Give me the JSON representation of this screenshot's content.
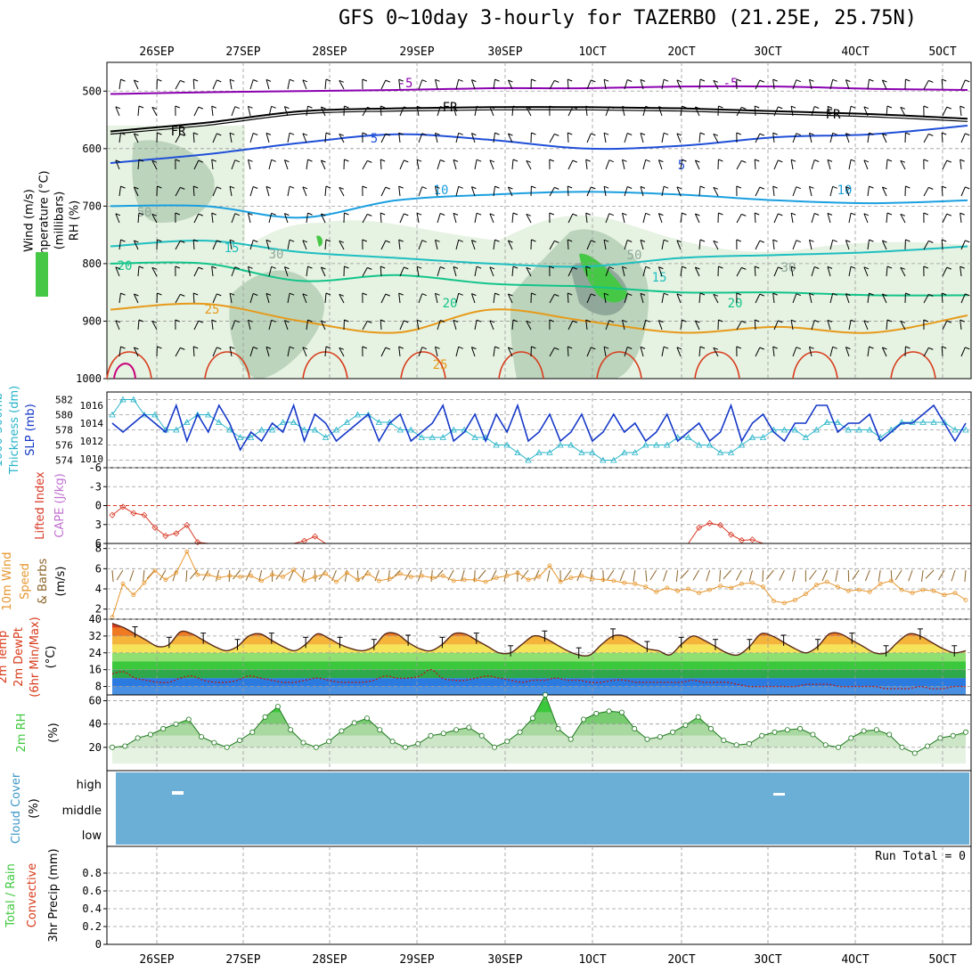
{
  "title": "GFS 0~10day 3-hourly for TAZERBO (21.25E, 25.75N)",
  "colors": {
    "purple": "#8b00b0",
    "black": "#000000",
    "blue": "#1f4fd8",
    "sky": "#1a9fe0",
    "cyan": "#1ebfc0",
    "teal": "#12c48a",
    "orange": "#e69a1a",
    "red": "#d83a1a",
    "magenta": "#c8007a",
    "rh_light": "#e6f2e2",
    "rh_mid": "#bcd4bc",
    "rh_dark": "#8fa89a",
    "rh_green": "#46c846",
    "slp": "#1437c8",
    "thick": "#28b4c8",
    "li": "#d83a28",
    "wind10": "#e6962d",
    "barb": "#8c6428",
    "rh2m": "#3cc83c",
    "cloud": "#6baed6",
    "grid": "#9a9a9a"
  },
  "time_labels": [
    "26SEP",
    "27SEP",
    "28SEP",
    "29SEP",
    "30SEP",
    "1OCT",
    "2OCT",
    "3OCT",
    "4OCT",
    "5OCT"
  ],
  "panels": [
    {
      "key": "upper",
      "left_labels": [
        {
          "text": "Wind (m/s)",
          "color": "#000000"
        },
        {
          "text": "Temperature (°C)",
          "color": "#000000"
        },
        {
          "text": "(millibars)",
          "color": "#000000"
        },
        {
          "text": "RH (%)",
          "color": "#000000"
        }
      ]
    },
    {
      "key": "thick",
      "left_labels": [
        {
          "text": "1000-500mb",
          "color": "#28b4c8"
        },
        {
          "text": "Thickness (dm)",
          "color": "#28b4c8"
        },
        {
          "text": "SLP (mb)",
          "color": "#1437c8"
        }
      ]
    },
    {
      "key": "li",
      "left_labels": [
        {
          "text": "Lifted Index",
          "color": "#d83a28"
        },
        {
          "text": "CAPE (J/kg)",
          "color": "#c070d0"
        }
      ]
    },
    {
      "key": "wind",
      "left_labels": [
        {
          "text": "10m Wind",
          "color": "#e6962d"
        },
        {
          "text": "Speed",
          "color": "#e6962d"
        },
        {
          "text": "& Barbs",
          "color": "#8c6428"
        },
        {
          "text": "(m/s)",
          "color": "#000000"
        }
      ]
    },
    {
      "key": "temp",
      "left_labels": [
        {
          "text": "2m Temp",
          "color": "#d83a1a"
        },
        {
          "text": "2m DewPt",
          "color": "#d83a1a"
        },
        {
          "text": "(6hr Min/Max)",
          "color": "#d83a1a"
        },
        {
          "text": "(°C)",
          "color": "#000000"
        }
      ]
    },
    {
      "key": "rh",
      "left_labels": [
        {
          "text": "2m RH",
          "color": "#3cc83c"
        },
        {
          "text": "(%)",
          "color": "#000000"
        }
      ]
    },
    {
      "key": "cloud",
      "left_labels": [
        {
          "text": "Cloud Cover",
          "color": "#3c96c8"
        },
        {
          "text": "(%)",
          "color": "#000000"
        }
      ]
    },
    {
      "key": "precip",
      "left_labels": [
        {
          "text": "Total / Rain",
          "color": "#3cc83c"
        },
        {
          "text": "Convective",
          "color": "#d83a1a"
        },
        {
          "text": "3hr Precip (mm)",
          "color": "#000000"
        }
      ]
    }
  ],
  "run_total": "Run Total = 0",
  "chart_data": [
    {
      "type": "heatmap",
      "name": "upper-air",
      "y_ticks": [
        "500",
        "600",
        "700",
        "800",
        "900",
        "1000"
      ],
      "ylim": [
        1000,
        450
      ],
      "contour_labels": [
        "-5",
        "-5",
        "FR",
        "FR",
        "FR",
        "5",
        "5",
        "10",
        "10",
        "15",
        "15",
        "20",
        "20",
        "20",
        "25",
        "25",
        "50",
        "50",
        "30",
        "30"
      ],
      "temperature_series": [
        {
          "name": "-5",
          "color": "#8b00b0",
          "values": [
            505,
            502,
            500,
            498,
            495,
            495,
            492,
            492,
            496,
            498
          ]
        },
        {
          "name": "FR",
          "color": "#000000",
          "values": [
            570,
            555,
            535,
            530,
            528,
            528,
            530,
            535,
            540,
            548
          ]
        },
        {
          "name": "5",
          "color": "#1f4fd8",
          "values": [
            625,
            610,
            590,
            575,
            585,
            600,
            595,
            580,
            575,
            560
          ]
        },
        {
          "name": "10",
          "color": "#1a9fe0",
          "values": [
            700,
            700,
            720,
            690,
            680,
            675,
            680,
            690,
            695,
            690
          ]
        },
        {
          "name": "15",
          "color": "#1ebfc0",
          "values": [
            770,
            760,
            780,
            790,
            800,
            805,
            790,
            785,
            780,
            770
          ]
        },
        {
          "name": "20",
          "color": "#12c48a",
          "values": [
            800,
            800,
            830,
            820,
            835,
            840,
            850,
            850,
            855,
            855
          ]
        },
        {
          "name": "25",
          "color": "#e69a1a",
          "values": [
            880,
            870,
            900,
            920,
            880,
            900,
            920,
            910,
            920,
            890
          ]
        }
      ]
    },
    {
      "type": "line",
      "name": "thickness-slp",
      "yleft_ticks": [
        "582",
        "580",
        "578",
        "576",
        "574"
      ],
      "yright_ticks": [
        "1016",
        "1014",
        "1012",
        "1010"
      ],
      "series": [
        {
          "name": "SLP",
          "axis": "right",
          "color": "#1437c8",
          "values": [
            1014,
            1013,
            1014,
            1015,
            1014,
            1013,
            1016,
            1012,
            1015,
            1013,
            1016,
            1014,
            1011,
            1013,
            1012,
            1014,
            1013,
            1016,
            1012,
            1015,
            1014,
            1012,
            1013,
            1014,
            1015,
            1012,
            1014,
            1015,
            1012,
            1013,
            1014,
            1016,
            1012,
            1013,
            1015,
            1012,
            1015,
            1013,
            1016,
            1012,
            1013,
            1015,
            1012,
            1013,
            1015,
            1012,
            1013,
            1015,
            1013,
            1014,
            1012,
            1013,
            1015,
            1012,
            1013,
            1014,
            1012,
            1013,
            1016,
            1012,
            1014,
            1015,
            1013,
            1012,
            1014,
            1014,
            1016,
            1016,
            1013,
            1014,
            1014,
            1015,
            1012,
            1013,
            1014,
            1014,
            1015,
            1016,
            1014,
            1012,
            1014
          ]
        },
        {
          "name": "Thickness",
          "axis": "left",
          "color": "#28b4c8",
          "values": [
            580,
            582,
            582,
            580,
            580,
            578,
            578,
            579,
            580,
            580,
            579,
            578,
            577,
            577,
            578,
            578,
            579,
            579,
            578,
            578,
            577,
            578,
            579,
            580,
            580,
            579,
            579,
            578,
            578,
            577,
            577,
            577,
            578,
            578,
            577,
            577,
            576,
            576,
            575,
            574,
            575,
            575,
            576,
            576,
            575,
            575,
            574,
            574,
            575,
            575,
            576,
            576,
            576,
            577,
            577,
            576,
            576,
            575,
            575,
            576,
            577,
            577,
            578,
            578,
            578,
            577,
            578,
            579,
            579,
            578,
            578,
            578,
            577,
            578,
            579,
            579,
            579,
            579,
            579,
            578,
            578
          ]
        }
      ]
    },
    {
      "type": "line",
      "name": "lifted-index",
      "y_ticks": [
        "-6",
        "-3",
        "0",
        "3",
        "6"
      ],
      "ylim": [
        -6,
        6
      ],
      "series": [
        {
          "name": "Lifted Index",
          "color": "#d83a28",
          "values": [
            1.5,
            0.2,
            1.2,
            1.5,
            3.5,
            4.8,
            4.4,
            3.1,
            5.8,
            6,
            6,
            6,
            6,
            6,
            6,
            6,
            6,
            6,
            5.6,
            4.9,
            6,
            6,
            6,
            6,
            6,
            6,
            6,
            6,
            6,
            6,
            6,
            6,
            6,
            6,
            6,
            6,
            6,
            6,
            6,
            6,
            6,
            6,
            6,
            6,
            6,
            6,
            6,
            6,
            6,
            6,
            6,
            6,
            6,
            6,
            6,
            3.5,
            2.8,
            3.1,
            4.6,
            5.5,
            5.4,
            6,
            6,
            6,
            6,
            6,
            6,
            6,
            6,
            6,
            6,
            6,
            6,
            6,
            6,
            6,
            6,
            6,
            6,
            6,
            6
          ]
        }
      ]
    },
    {
      "type": "line",
      "name": "wind-10m",
      "y_ticks": [
        "2",
        "4",
        "6",
        "8"
      ],
      "ylim": [
        1,
        8.5
      ],
      "series": [
        {
          "name": "Speed",
          "color": "#e6962d",
          "values": [
            1.2,
            4.5,
            3.4,
            4.6,
            5.8,
            4.9,
            5.6,
            7.7,
            5.4,
            5.4,
            5.1,
            5.3,
            5.2,
            5.3,
            4.8,
            5.4,
            5.2,
            5.9,
            4.8,
            5.2,
            5.5,
            4.7,
            5.6,
            4.9,
            5.5,
            4.8,
            5.0,
            5.5,
            5.2,
            5.3,
            5.1,
            5.3,
            4.8,
            4.9,
            4.9,
            4.7,
            5.1,
            5.3,
            5.6,
            4.9,
            5.2,
            6.3,
            4.7,
            5.1,
            5.3,
            5.0,
            4.9,
            4.8,
            4.6,
            4.5,
            4.2,
            3.7,
            4.1,
            3.8,
            4.0,
            3.6,
            3.9,
            4.3,
            4.1,
            4.5,
            4.6,
            4.2,
            2.8,
            2.6,
            2.9,
            3.5,
            4.4,
            4.7,
            4.2,
            3.8,
            3.9,
            3.7,
            4.5,
            4.8,
            3.9,
            3.6,
            3.9,
            3.8,
            3.4,
            3.6,
            2.9
          ]
        }
      ]
    },
    {
      "type": "area",
      "name": "temperature-2m",
      "y_ticks": [
        "8",
        "16",
        "24",
        "32",
        "40"
      ],
      "ylim": [
        4,
        40
      ],
      "series": [
        {
          "name": "2m Temp",
          "color": "#d83a1a",
          "values": [
            38,
            36,
            33,
            30,
            27,
            28,
            34,
            33,
            30,
            27,
            25,
            27,
            32,
            33,
            30,
            27,
            25,
            28,
            33,
            31,
            28,
            26,
            25,
            27,
            33,
            33,
            29,
            26,
            25,
            28,
            33,
            33,
            30,
            27,
            24,
            24,
            28,
            32,
            31,
            28,
            25,
            23,
            23,
            28,
            32,
            32,
            29,
            26,
            25,
            23,
            28,
            32,
            30,
            27,
            24,
            23,
            27,
            33,
            32,
            29,
            26,
            24,
            27,
            33,
            33,
            30,
            27,
            24,
            24,
            29,
            33,
            32,
            29,
            26,
            24,
            25
          ]
        },
        {
          "name": "2m DewPt",
          "color": "#b41e1e",
          "values": [
            14,
            15,
            12,
            11,
            10,
            10,
            12,
            13,
            11,
            10,
            10,
            11,
            13,
            12,
            11,
            10,
            10,
            11,
            12,
            11,
            10,
            10,
            10,
            11,
            13,
            12,
            12,
            13,
            16,
            12,
            11,
            11,
            12,
            13,
            12,
            11,
            10,
            11,
            11,
            12,
            11,
            11,
            10,
            10,
            11,
            11,
            10,
            10,
            10,
            10,
            10,
            11,
            10,
            10,
            10,
            9,
            8,
            8,
            8,
            8,
            8,
            9,
            9,
            9,
            8,
            8,
            8,
            8,
            7,
            7,
            7,
            8,
            7,
            7,
            8,
            8
          ]
        }
      ]
    },
    {
      "type": "area",
      "name": "rh-2m",
      "y_ticks": [
        "20",
        "40",
        "60"
      ],
      "ylim": [
        0,
        65
      ],
      "series": [
        {
          "name": "2m RH",
          "color": "#3cc83c",
          "values": [
            20,
            21,
            28,
            31,
            36,
            40,
            44,
            29,
            24,
            20,
            26,
            33,
            46,
            55,
            35,
            24,
            20,
            25,
            34,
            41,
            45,
            35,
            25,
            20,
            23,
            30,
            32,
            35,
            37,
            30,
            20,
            25,
            33,
            45,
            65,
            36,
            27,
            44,
            49,
            51,
            50,
            36,
            27,
            29,
            33,
            39,
            46,
            36,
            26,
            22,
            23,
            30,
            33,
            35,
            36,
            31,
            22,
            20,
            28,
            34,
            35,
            31,
            20,
            15,
            21,
            28,
            30,
            33
          ]
        }
      ]
    },
    {
      "type": "table",
      "name": "cloud-cover",
      "y_ticks": [
        "high",
        "middle",
        "low"
      ]
    },
    {
      "type": "bar",
      "name": "precip-3hr",
      "y_ticks": [
        "0",
        "0.2",
        "0.4",
        "0.6",
        "0.8"
      ],
      "ylim": [
        0,
        1
      ],
      "values": []
    }
  ]
}
